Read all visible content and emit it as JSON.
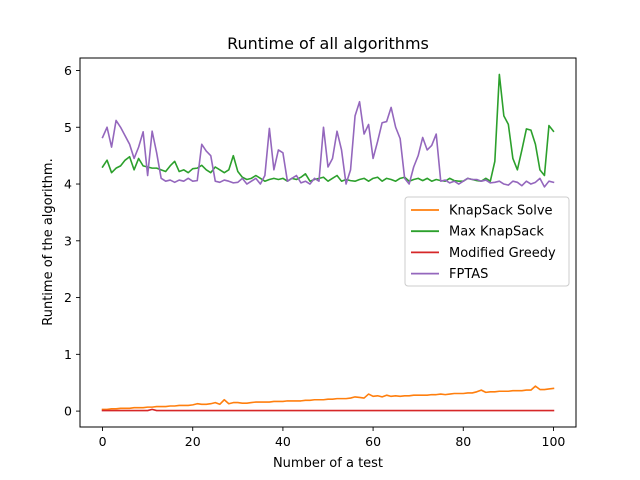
{
  "chart_data": {
    "type": "line",
    "title": "Runtime of all algorithms",
    "xlabel": "Number of a test",
    "ylabel": "Runtime of the algorithm.",
    "xlim": [
      -5,
      105
    ],
    "ylim": [
      -0.28,
      6.22
    ],
    "xticks": [
      0,
      20,
      40,
      60,
      80,
      100
    ],
    "yticks": [
      0,
      1,
      2,
      3,
      4,
      5,
      6
    ],
    "grid": false,
    "legend_position": "center-right",
    "x": [
      0,
      1,
      2,
      3,
      4,
      5,
      6,
      7,
      8,
      9,
      10,
      11,
      12,
      13,
      14,
      15,
      16,
      17,
      18,
      19,
      20,
      21,
      22,
      23,
      24,
      25,
      26,
      27,
      28,
      29,
      30,
      31,
      32,
      33,
      34,
      35,
      36,
      37,
      38,
      39,
      40,
      41,
      42,
      43,
      44,
      45,
      46,
      47,
      48,
      49,
      50,
      51,
      52,
      53,
      54,
      55,
      56,
      57,
      58,
      59,
      60,
      61,
      62,
      63,
      64,
      65,
      66,
      67,
      68,
      69,
      70,
      71,
      72,
      73,
      74,
      75,
      76,
      77,
      78,
      79,
      80,
      81,
      82,
      83,
      84,
      85,
      86,
      87,
      88,
      89,
      90,
      91,
      92,
      93,
      94,
      95,
      96,
      97,
      98,
      99,
      100
    ],
    "series": [
      {
        "name": "KnapSack Solve",
        "color": "#ff7f0e",
        "values": [
          0.03,
          0.03,
          0.04,
          0.04,
          0.05,
          0.05,
          0.05,
          0.06,
          0.06,
          0.06,
          0.07,
          0.07,
          0.08,
          0.08,
          0.08,
          0.09,
          0.09,
          0.1,
          0.1,
          0.1,
          0.11,
          0.13,
          0.12,
          0.12,
          0.13,
          0.15,
          0.12,
          0.2,
          0.13,
          0.15,
          0.15,
          0.14,
          0.14,
          0.15,
          0.16,
          0.16,
          0.16,
          0.16,
          0.17,
          0.17,
          0.17,
          0.18,
          0.18,
          0.18,
          0.18,
          0.19,
          0.19,
          0.2,
          0.2,
          0.2,
          0.21,
          0.21,
          0.22,
          0.22,
          0.22,
          0.23,
          0.25,
          0.24,
          0.23,
          0.3,
          0.26,
          0.27,
          0.25,
          0.28,
          0.26,
          0.27,
          0.26,
          0.27,
          0.27,
          0.28,
          0.28,
          0.28,
          0.28,
          0.29,
          0.29,
          0.3,
          0.29,
          0.3,
          0.31,
          0.31,
          0.31,
          0.32,
          0.32,
          0.34,
          0.37,
          0.33,
          0.34,
          0.34,
          0.35,
          0.35,
          0.35,
          0.36,
          0.36,
          0.36,
          0.37,
          0.37,
          0.44,
          0.38,
          0.38,
          0.39,
          0.4
        ]
      },
      {
        "name": "Max KnapSack",
        "color": "#2ca02c",
        "values": [
          4.3,
          4.42,
          4.2,
          4.28,
          4.32,
          4.42,
          4.48,
          4.25,
          4.45,
          4.32,
          4.3,
          4.28,
          4.28,
          4.25,
          4.22,
          4.32,
          4.4,
          4.22,
          4.25,
          4.2,
          4.27,
          4.28,
          4.33,
          4.25,
          4.2,
          4.3,
          4.25,
          4.2,
          4.25,
          4.5,
          4.22,
          4.12,
          4.08,
          4.1,
          4.15,
          4.1,
          4.05,
          4.08,
          4.1,
          4.08,
          4.1,
          4.05,
          4.1,
          4.08,
          4.12,
          4.18,
          4.05,
          4.08,
          4.1,
          4.12,
          4.05,
          4.1,
          4.15,
          4.05,
          4.08,
          4.06,
          4.05,
          4.08,
          4.1,
          4.05,
          4.1,
          4.12,
          4.05,
          4.1,
          4.08,
          4.05,
          4.1,
          4.12,
          4.05,
          4.08,
          4.1,
          4.06,
          4.1,
          4.05,
          4.08,
          4.06,
          4.05,
          4.1,
          4.06,
          4.05,
          4.05,
          4.1,
          4.08,
          4.06,
          4.05,
          4.1,
          4.05,
          4.4,
          5.93,
          5.2,
          5.05,
          4.45,
          4.25,
          4.6,
          4.97,
          4.95,
          4.7,
          4.25,
          4.15,
          5.03,
          4.93
        ]
      },
      {
        "name": "Modified Greedy",
        "color": "#d62728",
        "values": [
          0.01,
          0.01,
          0.01,
          0.01,
          0.01,
          0.01,
          0.01,
          0.01,
          0.01,
          0.01,
          0.01,
          0.03,
          0.01,
          0.01,
          0.01,
          0.01,
          0.01,
          0.01,
          0.01,
          0.01,
          0.01,
          0.01,
          0.01,
          0.01,
          0.01,
          0.01,
          0.01,
          0.01,
          0.01,
          0.01,
          0.01,
          0.01,
          0.01,
          0.01,
          0.01,
          0.01,
          0.01,
          0.01,
          0.01,
          0.01,
          0.01,
          0.01,
          0.01,
          0.01,
          0.01,
          0.01,
          0.01,
          0.01,
          0.01,
          0.01,
          0.01,
          0.01,
          0.01,
          0.01,
          0.01,
          0.01,
          0.01,
          0.01,
          0.01,
          0.01,
          0.01,
          0.01,
          0.01,
          0.01,
          0.01,
          0.01,
          0.01,
          0.01,
          0.01,
          0.01,
          0.01,
          0.01,
          0.01,
          0.01,
          0.01,
          0.01,
          0.01,
          0.01,
          0.01,
          0.01,
          0.01,
          0.01,
          0.01,
          0.01,
          0.01,
          0.01,
          0.01,
          0.01,
          0.01,
          0.01,
          0.01,
          0.01,
          0.01,
          0.01,
          0.01,
          0.01,
          0.01,
          0.01,
          0.01,
          0.01,
          0.01
        ]
      },
      {
        "name": "FPTAS",
        "color": "#9467bd",
        "values": [
          4.82,
          5.0,
          4.65,
          5.12,
          5.0,
          4.85,
          4.7,
          4.45,
          4.65,
          4.92,
          4.15,
          4.93,
          4.55,
          4.1,
          4.05,
          4.07,
          4.03,
          4.07,
          4.05,
          4.1,
          4.05,
          4.06,
          4.7,
          4.58,
          4.5,
          4.05,
          4.03,
          4.07,
          4.05,
          4.02,
          4.03,
          4.1,
          4.0,
          4.05,
          4.1,
          4.0,
          4.15,
          4.98,
          4.25,
          4.6,
          4.55,
          4.05,
          4.1,
          4.15,
          4.02,
          4.05,
          4.0,
          4.1,
          4.05,
          5.0,
          4.3,
          4.45,
          4.93,
          4.6,
          4.0,
          4.25,
          5.2,
          5.45,
          4.88,
          5.05,
          4.45,
          4.75,
          5.08,
          5.1,
          5.35,
          5.0,
          4.8,
          4.1,
          4.0,
          4.3,
          4.5,
          4.82,
          4.6,
          4.68,
          4.88,
          4.05,
          4.07,
          4.02,
          4.05,
          4.0,
          4.05,
          4.1,
          4.08,
          4.08,
          4.05,
          4.07,
          4.02,
          4.03,
          4.05,
          4.0,
          3.98,
          4.05,
          4.03,
          3.97,
          4.05,
          4.0,
          4.03,
          4.1,
          3.95,
          4.05,
          4.03
        ]
      }
    ]
  }
}
